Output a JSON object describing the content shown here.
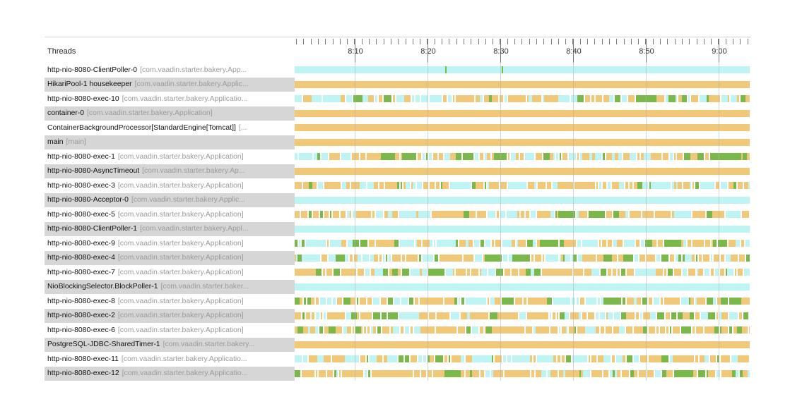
{
  "header": {
    "column_label": "Threads"
  },
  "timeline": {
    "tick_labels": [
      "8:10",
      "8:20",
      "8:30",
      "8:40",
      "8:50",
      "9:00"
    ]
  },
  "colors": {
    "running": "#f0c877",
    "waiting": "#bff4f5",
    "blocked": "#7ab84a",
    "row_shade": "#d6d6d6"
  },
  "threads": [
    {
      "name": "http-nio-8080-ClientPoller-0",
      "context": "[com.vaadin.starter.bakery.App...",
      "pattern": "cyan"
    },
    {
      "name": "HikariPool-1 housekeeper",
      "context": "[com.vaadin.starter.bakery.Applic...",
      "pattern": "orange"
    },
    {
      "name": "http-nio-8080-exec-10",
      "context": "[com.vaadin.starter.bakery.Applicatio...",
      "pattern": "mixed"
    },
    {
      "name": "container-0",
      "context": "[com.vaadin.starter.bakery.Application]",
      "pattern": "orange"
    },
    {
      "name": "ContainerBackgroundProcessor[StandardEngine[Tomcat]]",
      "context": "[...",
      "pattern": "orange"
    },
    {
      "name": "main",
      "context": "[main]",
      "pattern": "orange"
    },
    {
      "name": "http-nio-8080-exec-1",
      "context": "[com.vaadin.starter.bakery.Application]",
      "pattern": "mixed"
    },
    {
      "name": "http-nio-8080-AsyncTimeout",
      "context": "[com.vaadin.starter.bakery.Ap...",
      "pattern": "orange"
    },
    {
      "name": "http-nio-8080-exec-3",
      "context": "[com.vaadin.starter.bakery.Application]",
      "pattern": "mixed"
    },
    {
      "name": "http-nio-8080-Acceptor-0",
      "context": "[com.vaadin.starter.bakery.Applic...",
      "pattern": "cyan"
    },
    {
      "name": "http-nio-8080-exec-5",
      "context": "[com.vaadin.starter.bakery.Application]",
      "pattern": "mixed"
    },
    {
      "name": "http-nio-8080-ClientPoller-1",
      "context": "[com.vaadin.starter.bakery.Appl...",
      "pattern": "cyan"
    },
    {
      "name": "http-nio-8080-exec-9",
      "context": "[com.vaadin.starter.bakery.Application]",
      "pattern": "mixed"
    },
    {
      "name": "http-nio-8080-exec-4",
      "context": "[com.vaadin.starter.bakery.Application]",
      "pattern": "mixed"
    },
    {
      "name": "http-nio-8080-exec-7",
      "context": "[com.vaadin.starter.bakery.Application]",
      "pattern": "mixed"
    },
    {
      "name": "NioBlockingSelector.BlockPoller-1",
      "context": "[com.vaadin.starter.baker...",
      "pattern": "cyan"
    },
    {
      "name": "http-nio-8080-exec-8",
      "context": "[com.vaadin.starter.bakery.Application]",
      "pattern": "mixed"
    },
    {
      "name": "http-nio-8080-exec-2",
      "context": "[com.vaadin.starter.bakery.Application]",
      "pattern": "mixed"
    },
    {
      "name": "http-nio-8080-exec-6",
      "context": "[com.vaadin.starter.bakery.Application]",
      "pattern": "mixed"
    },
    {
      "name": "PostgreSQL-JDBC-SharedTimer-1",
      "context": "[com.vaadin.starter.bakery...",
      "pattern": "orange"
    },
    {
      "name": "http-nio-8080-exec-11",
      "context": "[com.vaadin.starter.bakery.Applicatio...",
      "pattern": "mixed"
    },
    {
      "name": "http-nio-8080-exec-12",
      "context": "[com.vaadin.starter.bakery.Applicatio...",
      "pattern": "mixed"
    }
  ]
}
